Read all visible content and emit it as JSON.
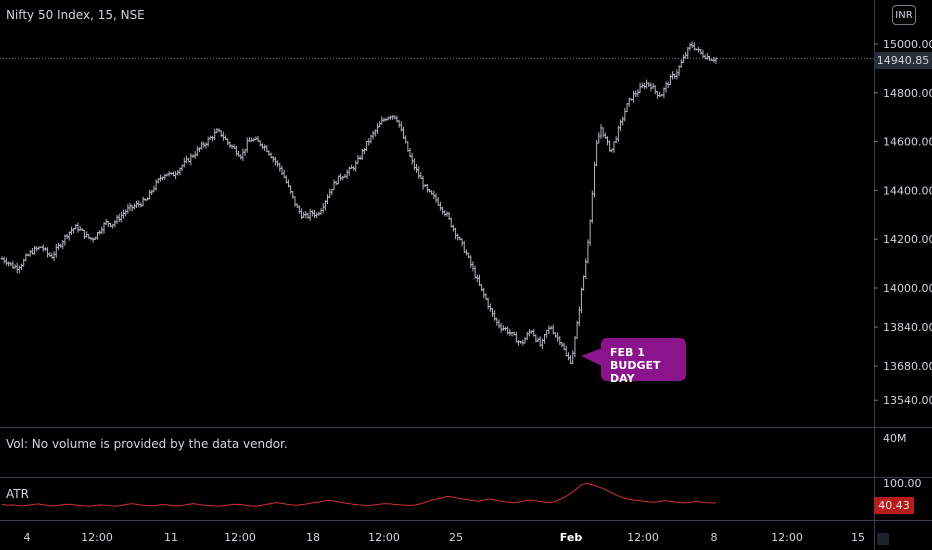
{
  "header": {
    "title": "Nifty 50 Index, 15, NSE",
    "currency": "INR"
  },
  "price_axis": {
    "ticks": [
      "15000.00",
      "14800.00",
      "14600.00",
      "14400.00",
      "14200.00",
      "14000.00",
      "13840.00",
      "13680.00",
      "13540.00"
    ],
    "last_price_label": "14940.85"
  },
  "volume_pane": {
    "message": "Vol: No volume is provided by the data vendor.",
    "axis_tick": "40M"
  },
  "atr_pane": {
    "label": "ATR",
    "axis_tick": "100.00",
    "value_label": "40.43"
  },
  "time_axis": {
    "ticks": [
      "4",
      "12:00",
      "11",
      "12:00",
      "18",
      "12:00",
      "25",
      "Feb",
      "12:00",
      "8",
      "12:00",
      "15"
    ]
  },
  "annotation": {
    "line1": "FEB 1",
    "line2": "BUDGET DAY"
  },
  "colors": {
    "background": "#000000",
    "price_bars": "#b2b5be",
    "atr_line": "#d32f2f",
    "annotation_bg": "#8b138b",
    "atr_badge": "#b71c1c"
  },
  "chart_data": [
    {
      "type": "line",
      "title": "Nifty 50 Index, 15, NSE",
      "style": "ohlc-bars",
      "y_axis_position": "right",
      "ylim": [
        13480,
        15060
      ],
      "x_ticks": [
        "4",
        "12:00",
        "11",
        "12:00",
        "18",
        "12:00",
        "25",
        "Feb",
        "12:00",
        "8",
        "12:00",
        "15"
      ],
      "x": [
        "4",
        "12:00",
        "11",
        "12:00",
        "18",
        "12:00",
        "25",
        "Feb",
        "12:00",
        "8"
      ],
      "series": [
        {
          "values": [
            14120,
            14240,
            14470,
            14630,
            14340,
            14700,
            14150,
            13700,
            14660,
            14960
          ]
        }
      ],
      "close_profile": [
        14120,
        14110,
        14090,
        14085,
        14100,
        14130,
        14150,
        14160,
        14170,
        14140,
        14130,
        14160,
        14190,
        14220,
        14240,
        14250,
        14230,
        14210,
        14200,
        14220,
        14250,
        14270,
        14260,
        14280,
        14300,
        14320,
        14330,
        14340,
        14350,
        14360,
        14400,
        14430,
        14460,
        14470,
        14460,
        14480,
        14500,
        14520,
        14540,
        14560,
        14580,
        14600,
        14620,
        14640,
        14630,
        14600,
        14580,
        14560,
        14540,
        14590,
        14610,
        14600,
        14590,
        14570,
        14540,
        14510,
        14480,
        14430,
        14380,
        14330,
        14300,
        14290,
        14310,
        14300,
        14330,
        14370,
        14410,
        14440,
        14460,
        14470,
        14490,
        14510,
        14550,
        14590,
        14620,
        14650,
        14680,
        14700,
        14710,
        14700,
        14640,
        14580,
        14520,
        14480,
        14440,
        14400,
        14380,
        14360,
        14330,
        14300,
        14260,
        14220,
        14180,
        14140,
        14090,
        14040,
        13990,
        13950,
        13900,
        13860,
        13840,
        13830,
        13810,
        13790,
        13770,
        13800,
        13830,
        13790,
        13760,
        13820,
        13840,
        13800,
        13780,
        13720,
        13700,
        13820,
        13980,
        14120,
        14330,
        14580,
        14660,
        14600,
        14560,
        14620,
        14680,
        14740,
        14780,
        14800,
        14820,
        14840,
        14830,
        14800,
        14790,
        14830,
        14860,
        14880,
        14920,
        14960,
        15000,
        14980,
        14960,
        14950,
        14940,
        14940
      ]
    },
    {
      "type": "line",
      "title": "ATR",
      "ylim": [
        0,
        110
      ],
      "series": [
        {
          "name": "ATR",
          "values": [
            35,
            33,
            34,
            32,
            31,
            33,
            35,
            37,
            34,
            32,
            31,
            33,
            35,
            36,
            34,
            32,
            31,
            30,
            32,
            34,
            33,
            31,
            30,
            32,
            35,
            38,
            36,
            33,
            32,
            31,
            33,
            35,
            34,
            32,
            31,
            33,
            36,
            38,
            35,
            33,
            32,
            31,
            30,
            32,
            34,
            36,
            35,
            33,
            31,
            30,
            32,
            35,
            38,
            41,
            39,
            36,
            34,
            33,
            35,
            37,
            40,
            42,
            45,
            48,
            46,
            43,
            40,
            38,
            36,
            34,
            33,
            32,
            34,
            36,
            38,
            37,
            35,
            34,
            33,
            32,
            34,
            38,
            43,
            48,
            52,
            55,
            60,
            58,
            55,
            52,
            50,
            47,
            45,
            48,
            52,
            50,
            47,
            44,
            42,
            40,
            43,
            46,
            49,
            47,
            44,
            42,
            41,
            45,
            52,
            60,
            70,
            82,
            95,
            100,
            96,
            90,
            85,
            78,
            70,
            62,
            56,
            52,
            49,
            47,
            45,
            43,
            42,
            44,
            47,
            45,
            43,
            41,
            40,
            42,
            44,
            43,
            41,
            40,
            40
          ]
        }
      ],
      "last_value": 40.43
    }
  ]
}
